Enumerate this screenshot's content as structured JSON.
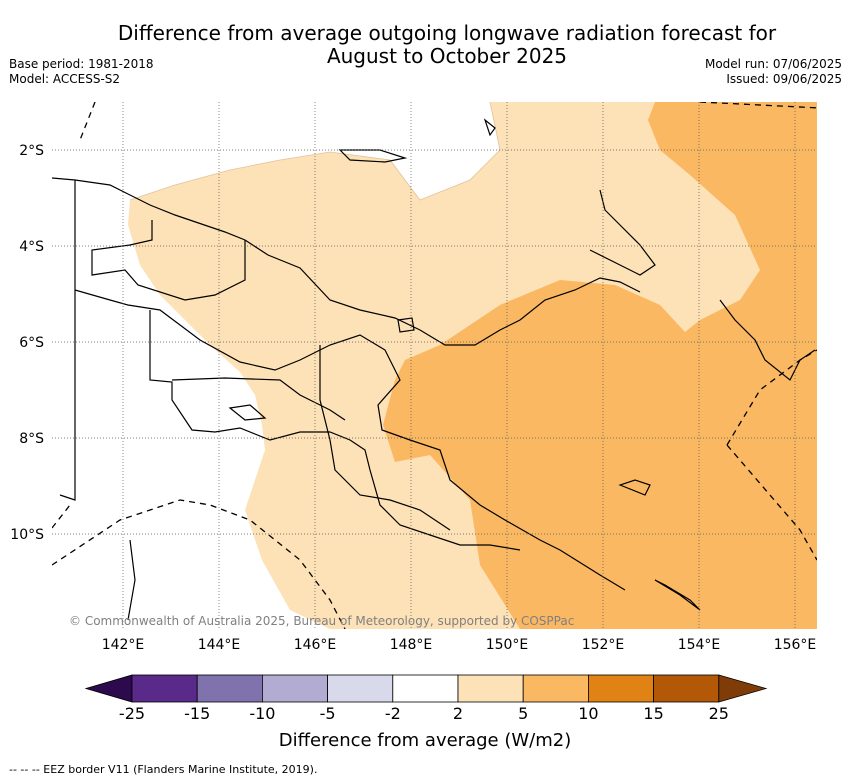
{
  "header": {
    "title_line1": "Difference from average outgoing longwave radiation forecast for",
    "title_line2": "August to October 2025",
    "base_period": "Base period: 1981-2018",
    "model": "Model: ACCESS-S2",
    "model_run": "Model run: 07/06/2025",
    "issued": "Issued: 09/06/2025"
  },
  "map": {
    "lat_labels": [
      "2°S",
      "4°S",
      "6°S",
      "8°S",
      "10°S"
    ],
    "lon_labels": [
      "142°E",
      "144°E",
      "146°E",
      "148°E",
      "150°E",
      "152°E",
      "154°E",
      "156°E"
    ],
    "copyright": "© Commonwealth of Australia 2025, Bureau of Meteorology, supported by COSPPac",
    "colors": {
      "band_2_5": "#fde1b7",
      "band_5_10": "#fbb862",
      "coast": "#000000",
      "grid": "#555555"
    }
  },
  "colorbar": {
    "title": "Difference from average (W/m2)",
    "ticks": [
      "-25",
      "-15",
      "-10",
      "-5",
      "-2",
      "2",
      "5",
      "10",
      "15",
      "25"
    ],
    "colors": [
      "#2d0a4e",
      "#5a2a8a",
      "#8072ac",
      "#b2abd2",
      "#d8daeb",
      "#ffffff",
      "#fde1b7",
      "#fbb862",
      "#e08214",
      "#b35806",
      "#7f3b08"
    ]
  },
  "footer": {
    "eez_note": "--  --  -- EEZ border V11 (Flanders Marine Institute, 2019)."
  }
}
